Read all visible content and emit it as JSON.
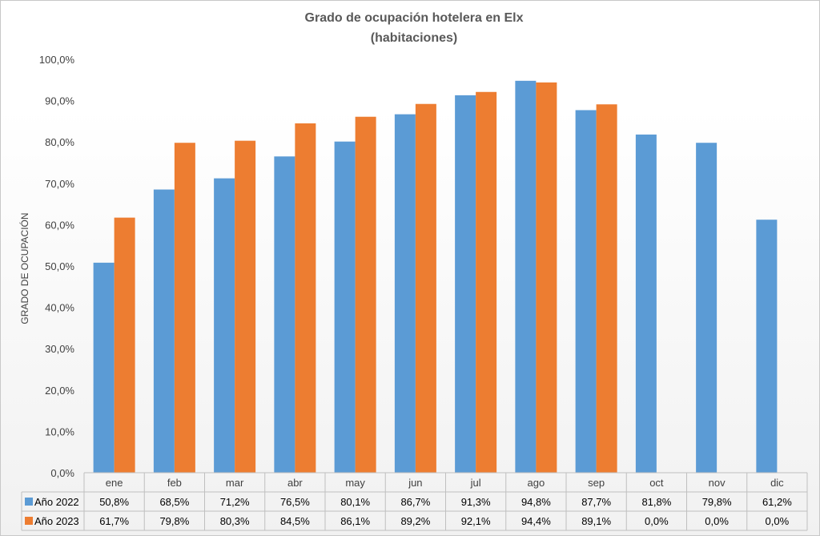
{
  "chart_data": {
    "type": "bar",
    "title": "Grado de ocupación hotelera en Elx",
    "subtitle": "(habitaciones)",
    "ylabel": "GRADO DE OCUPACIÓN",
    "xlabel": "",
    "ylim": [
      0,
      100
    ],
    "ytick_labels": [
      "0,0%",
      "10,0%",
      "20,0%",
      "30,0%",
      "40,0%",
      "50,0%",
      "60,0%",
      "70,0%",
      "80,0%",
      "90,0%",
      "100,0%"
    ],
    "grid": false,
    "legend": "data-table-left",
    "categories": [
      "ene",
      "feb",
      "mar",
      "abr",
      "may",
      "jun",
      "jul",
      "ago",
      "sep",
      "oct",
      "nov",
      "dic"
    ],
    "series": [
      {
        "name": "Año 2022",
        "color": "#5B9BD5",
        "values": [
          50.8,
          68.5,
          71.2,
          76.5,
          80.1,
          86.7,
          91.3,
          94.8,
          87.7,
          81.8,
          79.8,
          61.2
        ],
        "labels": [
          "50,8%",
          "68,5%",
          "71,2%",
          "76,5%",
          "80,1%",
          "86,7%",
          "91,3%",
          "94,8%",
          "87,7%",
          "81,8%",
          "79,8%",
          "61,2%"
        ]
      },
      {
        "name": "Año 2023",
        "color": "#ED7D31",
        "values": [
          61.7,
          79.8,
          80.3,
          84.5,
          86.1,
          89.2,
          92.1,
          94.4,
          89.1,
          0.0,
          0.0,
          0.0
        ],
        "labels": [
          "61,7%",
          "79,8%",
          "80,3%",
          "84,5%",
          "86,1%",
          "89,2%",
          "92,1%",
          "94,4%",
          "89,1%",
          "0,0%",
          "0,0%",
          "0,0%"
        ]
      }
    ]
  }
}
